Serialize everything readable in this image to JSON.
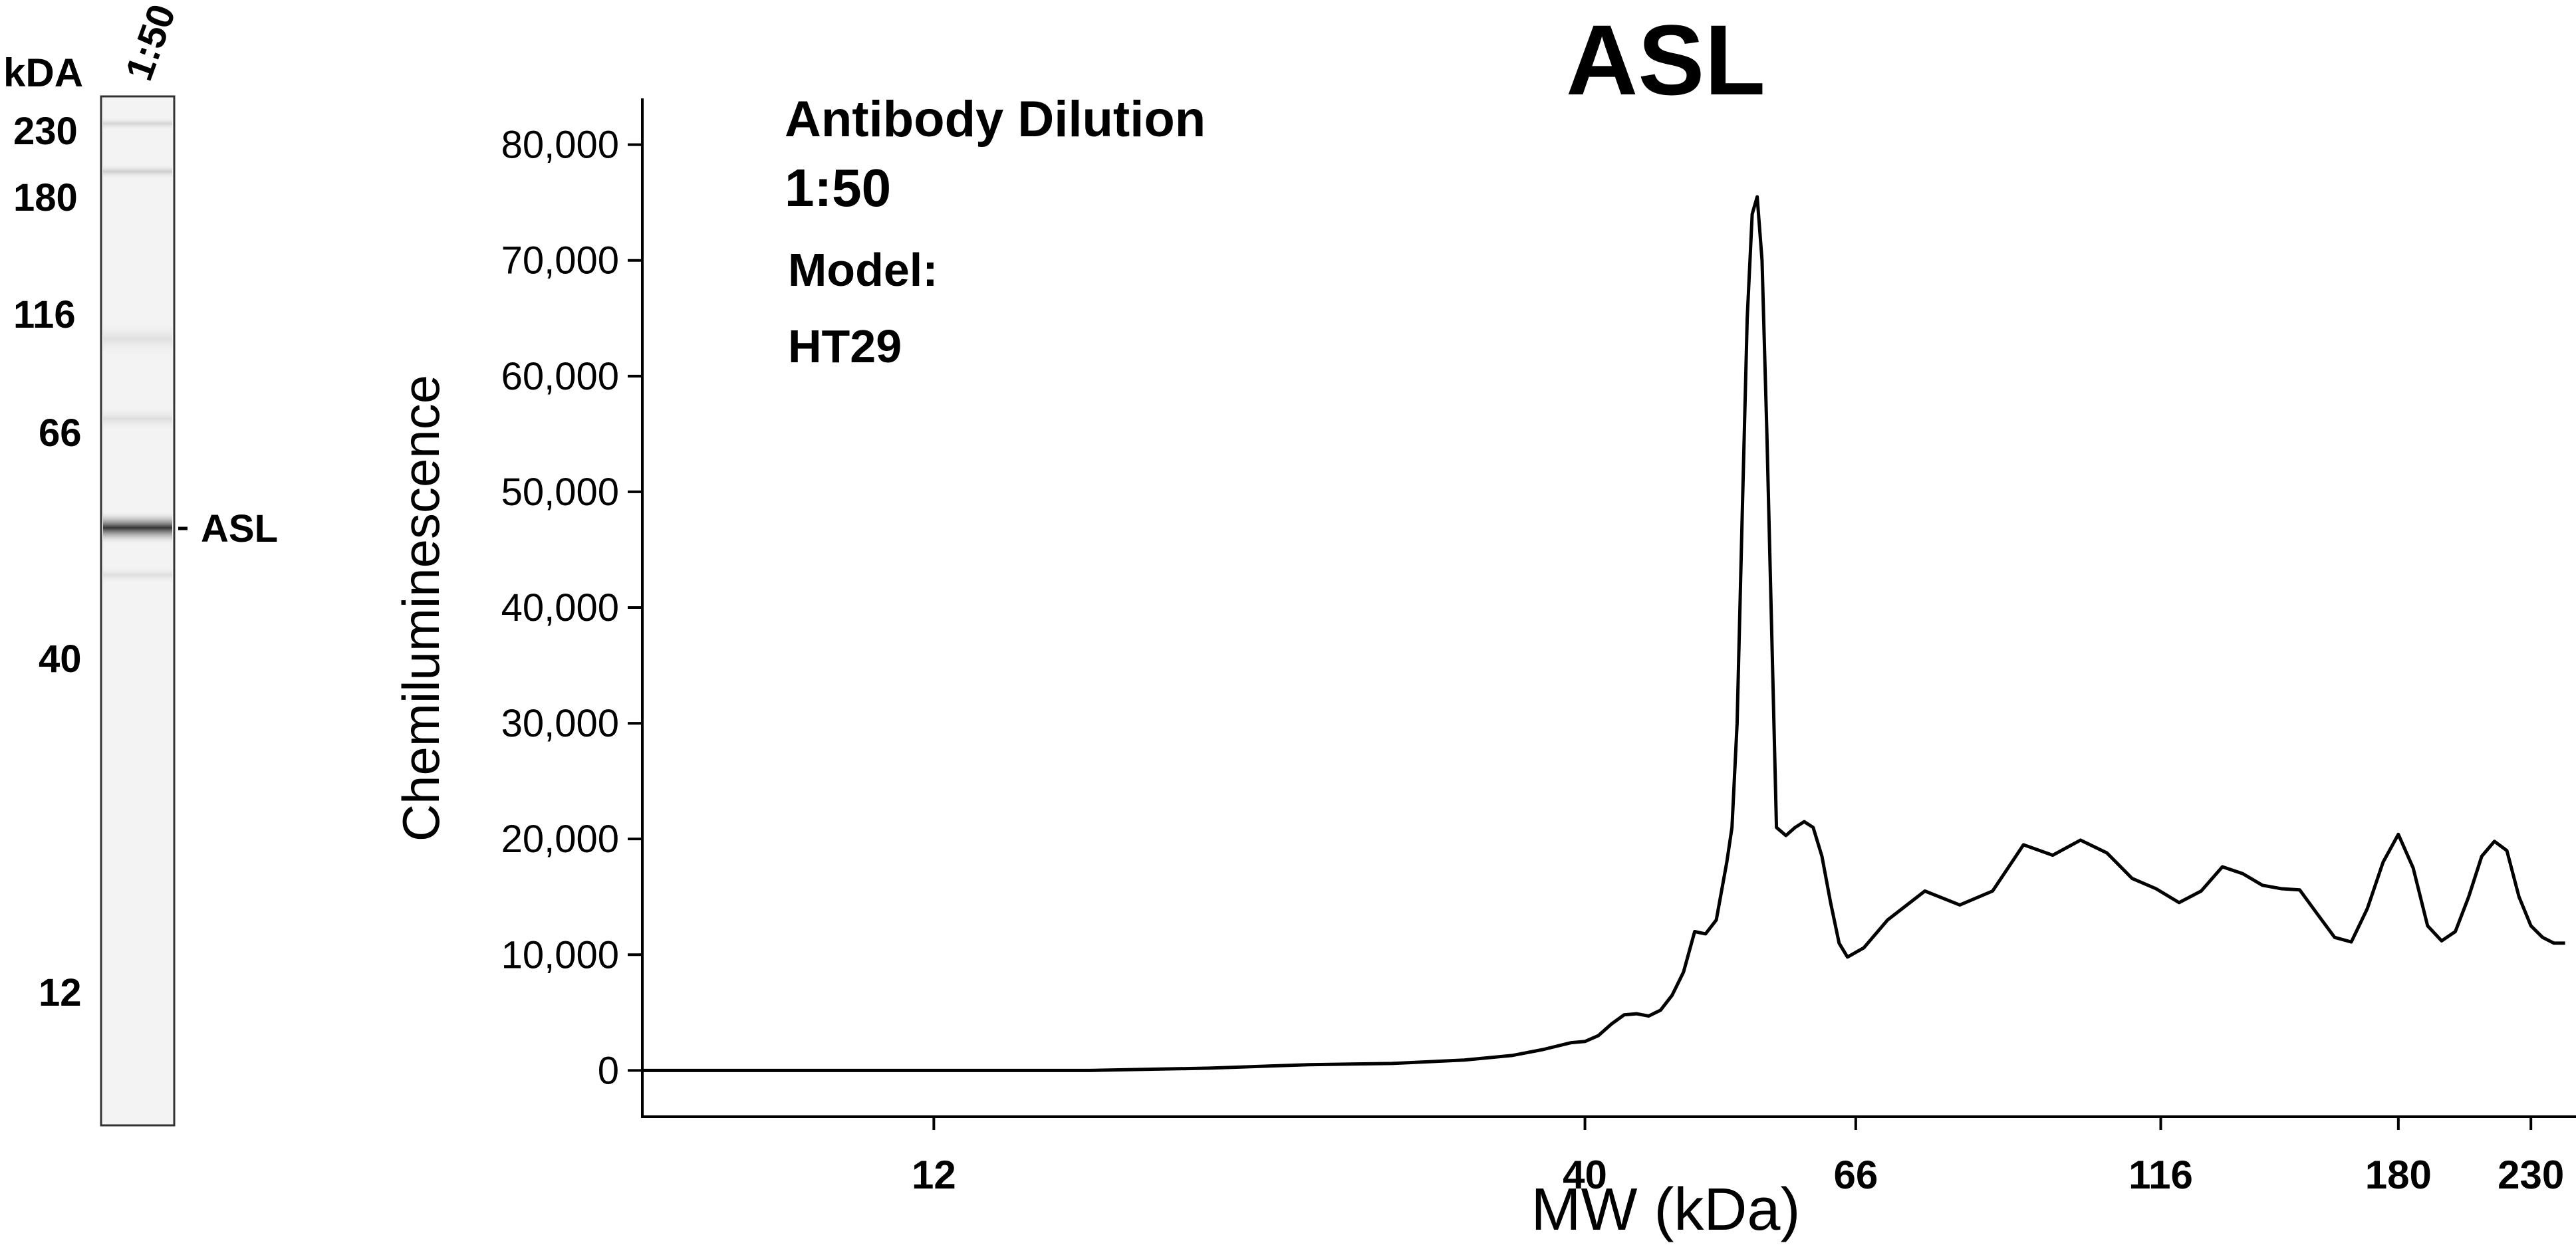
{
  "gel": {
    "lane_label": "1:50",
    "unit_label": "kDA",
    "markers": [
      "230",
      "180",
      "116",
      "66",
      "40",
      "12"
    ],
    "band_label": "ASL"
  },
  "annotation": {
    "line1": "Antibody Dilution",
    "line2": "1:50",
    "line3": "Model:",
    "line4": "HT29"
  },
  "chart_data": {
    "type": "line",
    "title": "ASL",
    "xlabel": "MW (kDa)",
    "ylabel": "Chemiluminescence",
    "x_scale": "log",
    "x_ticks": [
      "12",
      "40",
      "66",
      "116",
      "180",
      "230"
    ],
    "y_ticks": [
      "0",
      "10,000",
      "20,000",
      "30,000",
      "40,000",
      "50,000",
      "60,000",
      "70,000",
      "80,000"
    ],
    "ylim": [
      -4000,
      84000
    ],
    "grid": false,
    "legend": "none",
    "line_color": "#000000",
    "series": [
      {
        "x": [
          7,
          9,
          12,
          16,
          20,
          24,
          28,
          32,
          35,
          37,
          39,
          40,
          41,
          42,
          43,
          44,
          45,
          46,
          47,
          48,
          49,
          50,
          51,
          52,
          52.5,
          53,
          53.5,
          54,
          54.5,
          55,
          55.5,
          56,
          57,
          58,
          59,
          60,
          61,
          62,
          63,
          64,
          65,
          66,
          67,
          70,
          75,
          80,
          85,
          90,
          95,
          100,
          105,
          110,
          115,
          120,
          125,
          130,
          135,
          140,
          145,
          150,
          155,
          160,
          165,
          170,
          175,
          180,
          185,
          190,
          195,
          200,
          205,
          210,
          215,
          220,
          225,
          230,
          235,
          240,
          245
        ],
        "y": [
          0,
          0,
          0,
          0,
          200,
          500,
          600,
          900,
          1300,
          1800,
          2400,
          2500,
          3000,
          4000,
          4800,
          4900,
          4700,
          5200,
          6500,
          8500,
          12000,
          11800,
          13000,
          18000,
          21000,
          30000,
          48000,
          65000,
          74000,
          75500,
          70000,
          55000,
          21000,
          20300,
          21000,
          21500,
          21000,
          18500,
          14500,
          11000,
          9800,
          10200,
          10600,
          13000,
          15500,
          14300,
          15500,
          19500,
          18600,
          19900,
          18800,
          16600,
          15700,
          14500,
          15500,
          17600,
          17000,
          16000,
          15700,
          15600,
          13500,
          11500,
          11100,
          14000,
          18000,
          20400,
          17500,
          12500,
          11200,
          12000,
          15000,
          18500,
          19800,
          19000,
          15000,
          12500,
          11500,
          11000,
          11000
        ]
      }
    ]
  }
}
